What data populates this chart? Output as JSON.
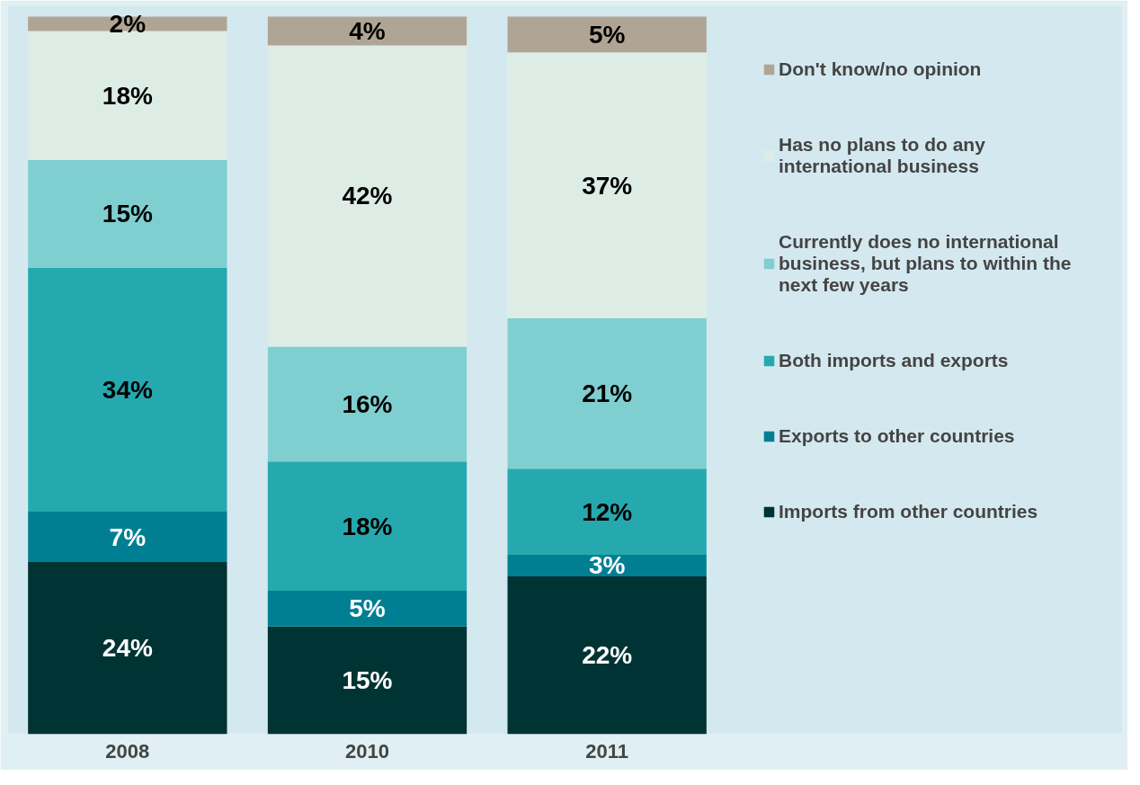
{
  "chart_data": {
    "type": "bar",
    "stacked": true,
    "legend": "right",
    "grid": false,
    "categories": [
      "2008",
      "2010",
      "2011"
    ],
    "series": [
      {
        "name": "Imports from other countries",
        "color": "#003333",
        "values": [
          24,
          15,
          22
        ],
        "value_labels": [
          "24%",
          "15%",
          "22%"
        ]
      },
      {
        "name": "Exports to other countries",
        "color": "#007f93",
        "values": [
          7,
          5,
          3
        ],
        "value_labels": [
          "7%",
          "5%",
          "3%"
        ]
      },
      {
        "name": "Both imports and exports",
        "color": "#26a9ae",
        "values": [
          34,
          18,
          12
        ],
        "value_labels": [
          "34%",
          "18%",
          "12%"
        ]
      },
      {
        "name": "Currently does no international business, but plans to within the next few years",
        "color": "#80cfd0",
        "values": [
          15,
          16,
          21
        ],
        "value_labels": [
          "15%",
          "16%",
          "21%"
        ]
      },
      {
        "name": "Has no plans to do any international business",
        "color": "#ddede6",
        "values": [
          18,
          42,
          37
        ],
        "value_labels": [
          "18%",
          "42%",
          "37%"
        ]
      },
      {
        "name": "Don't know/no opinion",
        "color": "#b0a595",
        "values": [
          2,
          4,
          5
        ],
        "value_labels": [
          "2%",
          "4%",
          "5%"
        ]
      }
    ]
  }
}
